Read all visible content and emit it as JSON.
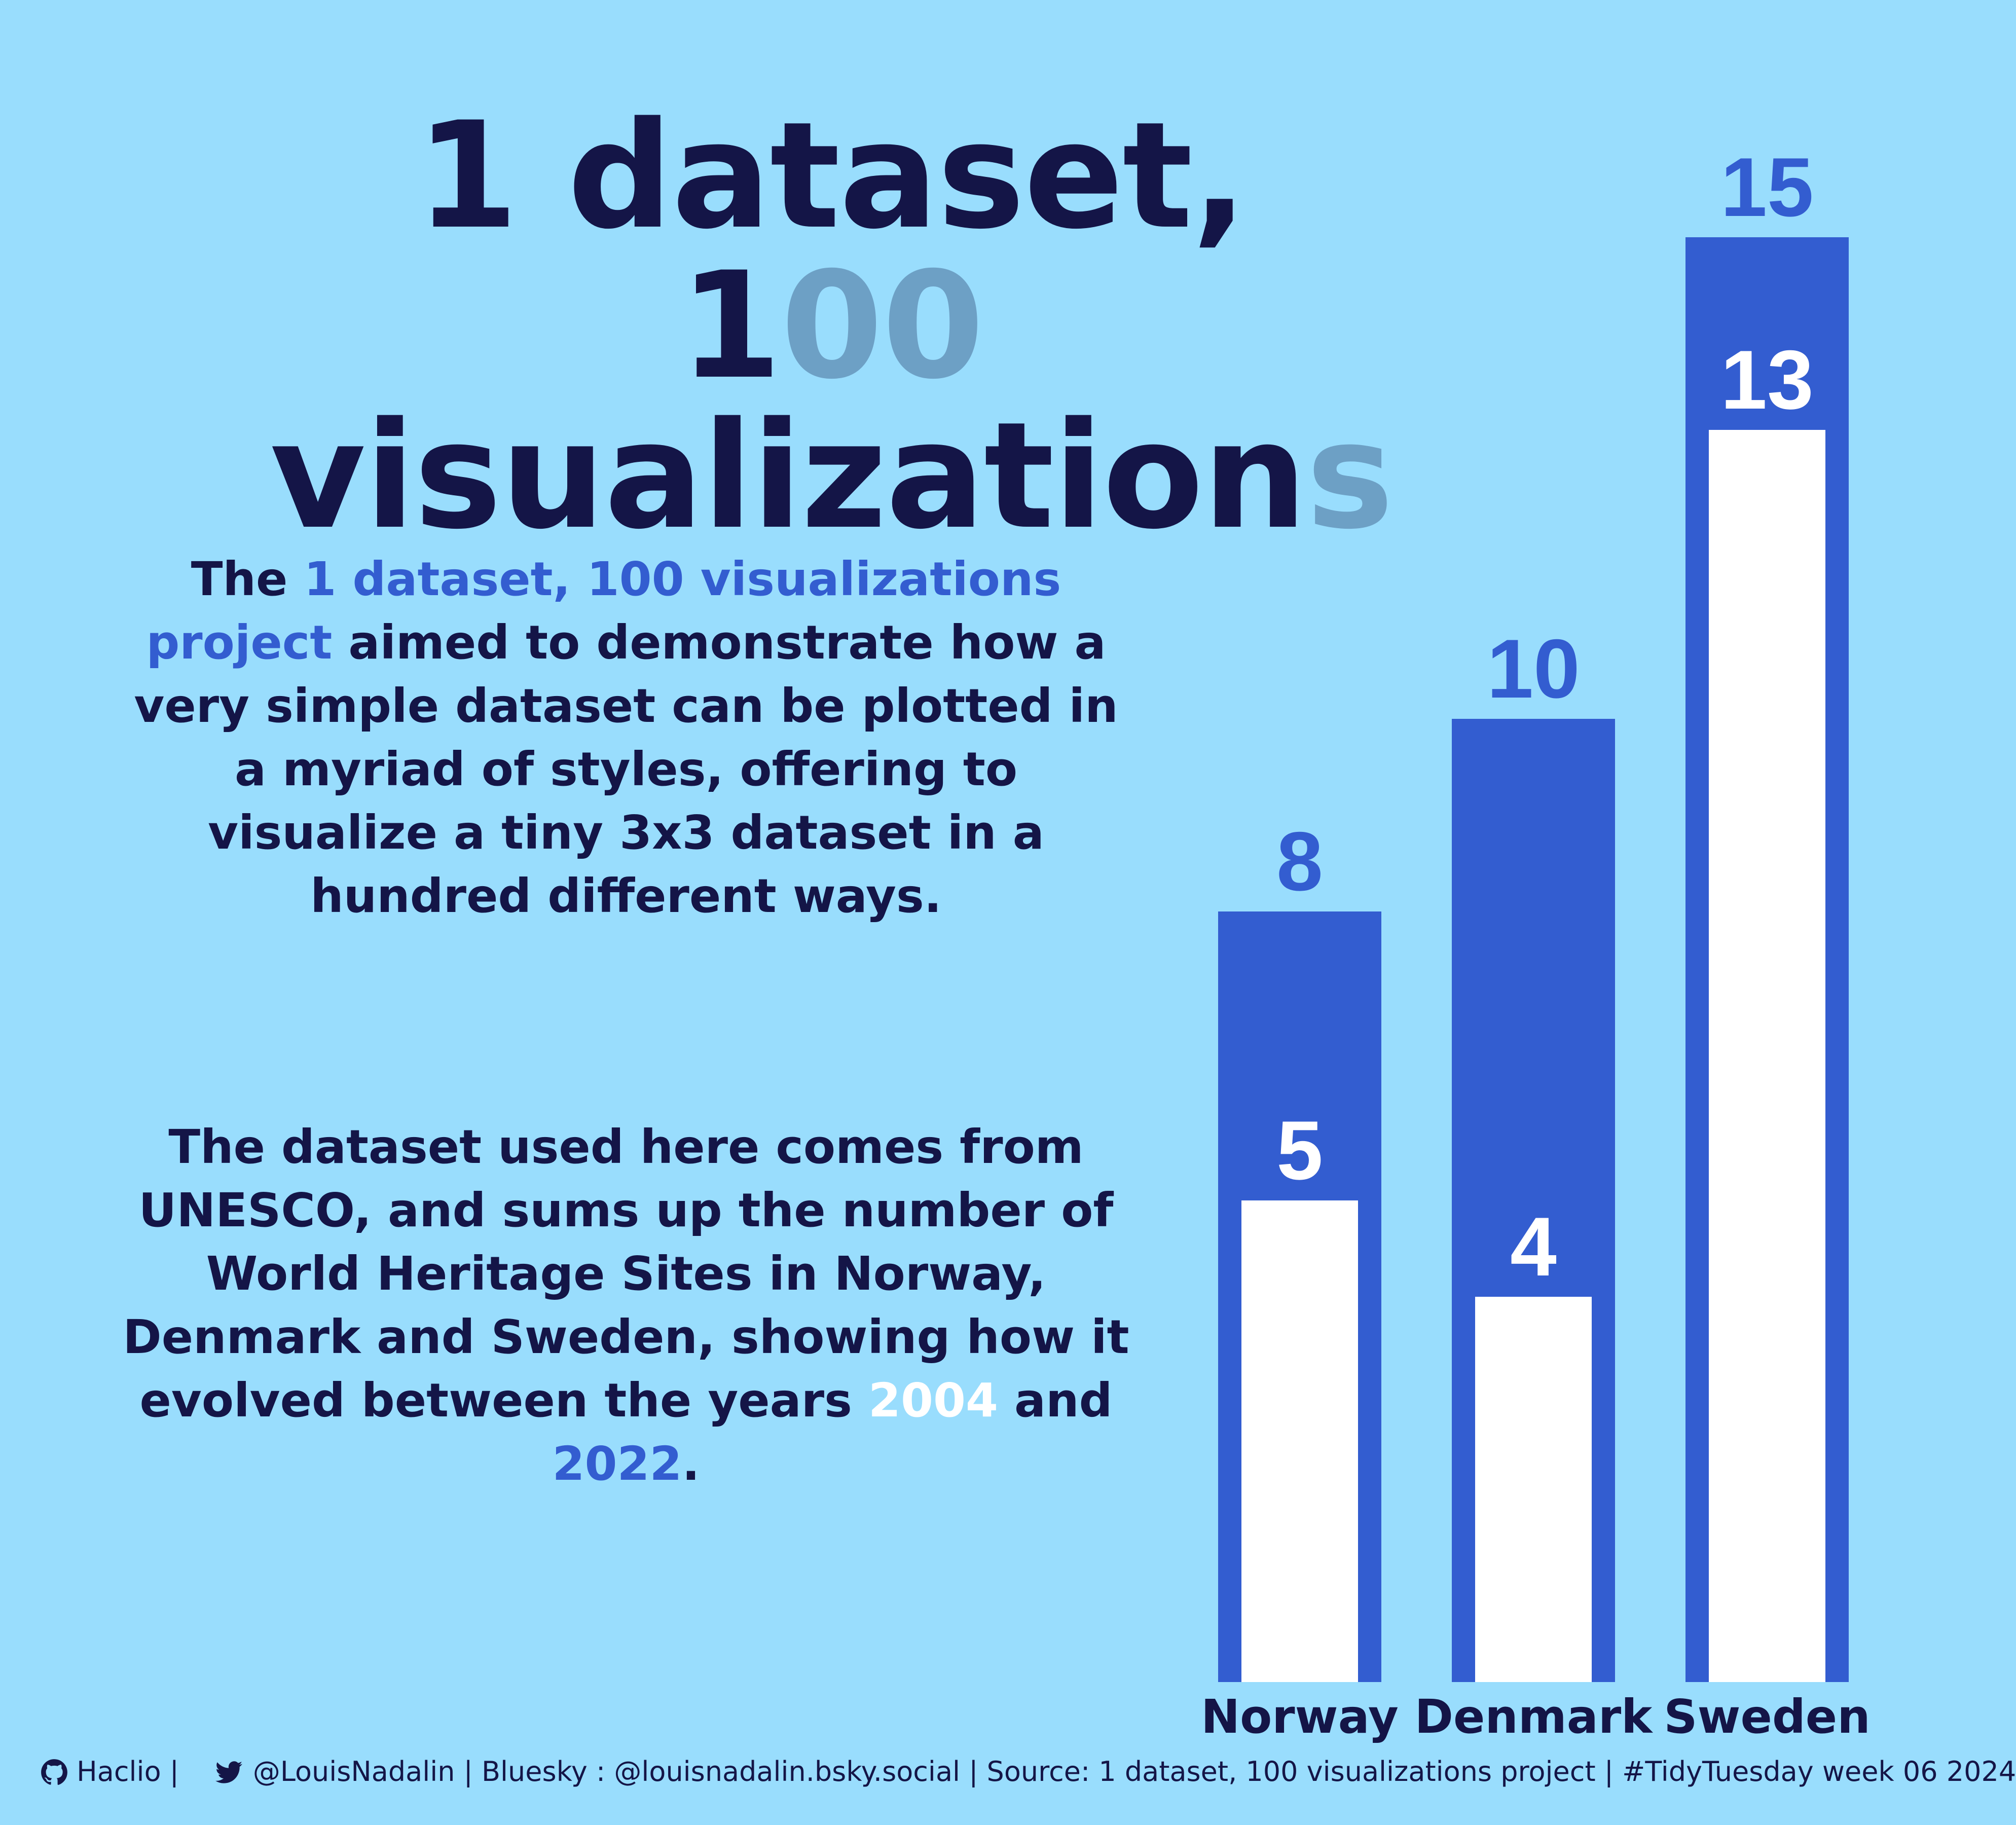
{
  "title": {
    "line1": "1 dataset,",
    "line2_a": "1",
    "line2_b": "00",
    "line2_c": " visualization",
    "line2_d": "s"
  },
  "paragraph1": {
    "t1": "The ",
    "t2": "1 dataset, 100 visualizations project",
    "t3": " aimed to demonstrate how a very simple dataset can be plotted in a myriad of styles, offering to visualize a tiny 3x3 dataset in a hundred different ways."
  },
  "paragraph2": {
    "t1": "The dataset used here comes from UNESCO, and sums up the number of World Heritage Sites in Norway, Denmark and Sweden, showing how it evolved between the years ",
    "y1": "2004",
    "t2": " and ",
    "y2": "2022",
    "t3": "."
  },
  "footer": {
    "github": "Haclio |",
    "twitter": "@LouisNadalin | Bluesky : @louisnadalin.bsky.social | Source: 1 dataset, 100 visualizations project | #TidyTuesday week 06 2024"
  },
  "colors": {
    "background": "#99DDFD",
    "dark": "#141547",
    "bar_2022": "#335DD0",
    "bar_2004": "#FFFFFF",
    "title_highlight": "#6DA0C5"
  },
  "icons": [
    "github-icon",
    "twitter-icon"
  ],
  "chart_data": {
    "type": "bar",
    "title": "",
    "xlabel": "",
    "ylabel": "",
    "categories": [
      "Norway",
      "Denmark",
      "Sweden"
    ],
    "series": [
      {
        "name": "2022",
        "values": [
          8,
          10,
          15
        ]
      },
      {
        "name": "2004",
        "values": [
          5,
          4,
          13
        ]
      }
    ],
    "ylim": [
      0,
      15
    ],
    "grid": false,
    "legend": "none"
  }
}
